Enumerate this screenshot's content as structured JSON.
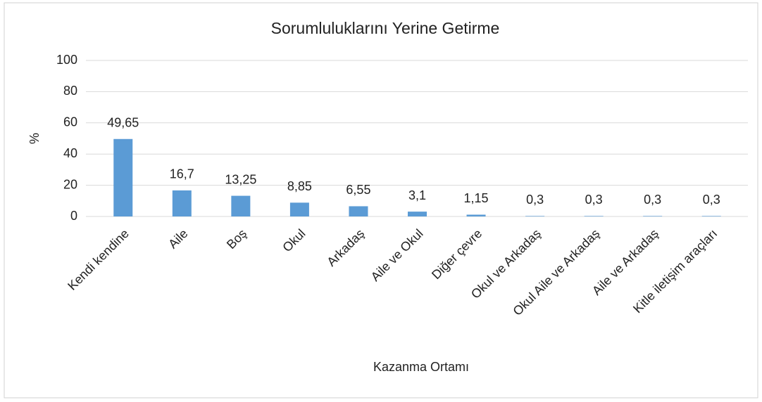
{
  "chart_data": {
    "type": "bar",
    "title": "Sorumluluklarını Yerine Getirme",
    "x_label": "Kazanma Ortamı",
    "y_label": "%",
    "categories": [
      "Kendi kendine",
      "Aile",
      "Boş",
      "Okul",
      "Arkadaş",
      "Aile ve Okul",
      "Diğer çevre",
      "Okul ve Arkadaş",
      "Okul Aile ve Arkadaş",
      "Aile ve Arkadaş",
      "Kitle iletişim araçları"
    ],
    "values": [
      49.65,
      16.7,
      13.25,
      8.85,
      6.55,
      3.1,
      1.15,
      0.3,
      0.3,
      0.3,
      0.3
    ],
    "value_labels": [
      "49,65",
      "16,7",
      "13,25",
      "8,85",
      "6,55",
      "3,1",
      "1,15",
      "0,3",
      "0,3",
      "0,3",
      "0,3"
    ],
    "color": "#5b9bd5",
    "ylim": [
      0,
      100
    ],
    "yticks": [
      0,
      20,
      40,
      60,
      80,
      100
    ],
    "grid": true
  }
}
